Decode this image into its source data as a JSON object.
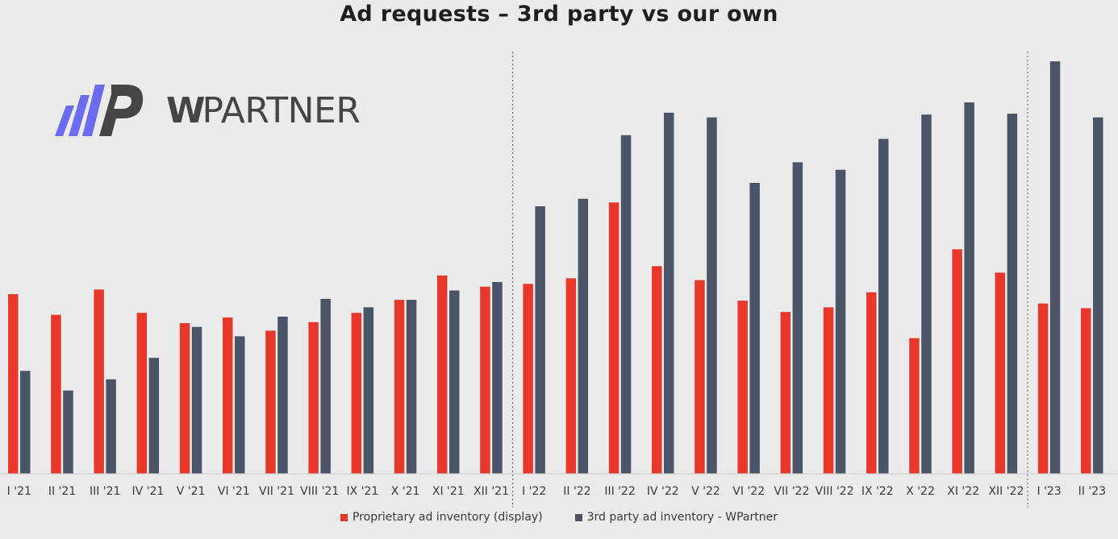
{
  "chart_data": {
    "type": "bar",
    "title": "Ad requests – 3rd party vs our own",
    "categories": [
      "I '21",
      "II '21",
      "III '21",
      "IV '21",
      "V '21",
      "VI '21",
      "VII '21",
      "VIII '21",
      "IX '21",
      "X '21",
      "XI '21",
      "XII '21",
      "I '22",
      "II '22",
      "III '22",
      "IV '22",
      "V '22",
      "VI '22",
      "VII '22",
      "VIII '22",
      "IX '22",
      "X '22",
      "XI '22",
      "XII '22",
      "I '23",
      "II '23"
    ],
    "series": [
      {
        "name": "Proprietary ad inventory (display)",
        "color": "#e8382c",
        "values": [
          192,
          170,
          197,
          172,
          161,
          167,
          153,
          162,
          172,
          186,
          212,
          200,
          203,
          209,
          290,
          222,
          207,
          185,
          173,
          178,
          194,
          145,
          240,
          215,
          182,
          177
        ]
      },
      {
        "name": "3rd party ad inventory - WPartner",
        "color": "#4a5568",
        "values": [
          110,
          89,
          101,
          124,
          157,
          147,
          168,
          187,
          178,
          186,
          196,
          205,
          286,
          294,
          362,
          386,
          381,
          311,
          333,
          325,
          358,
          384,
          397,
          385,
          441,
          381
        ]
      }
    ],
    "ylim": [
      0,
      460
    ],
    "year_dividers_after": [
      "XII '21",
      "XII '22"
    ],
    "legend_position": "bottom",
    "grid": false
  },
  "logo": {
    "text_bold": "W",
    "text_rest": "PARTNER",
    "colors": {
      "stripes": "#6b6cf2",
      "mark": "#454545"
    }
  }
}
